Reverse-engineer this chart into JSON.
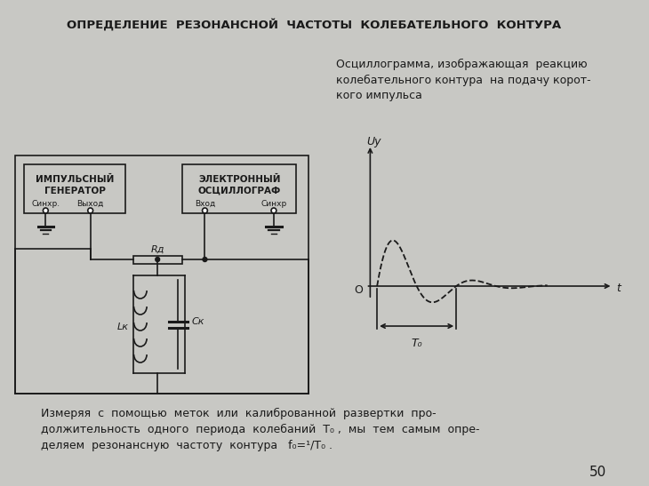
{
  "title": "ОПРЕДЕЛЕНИЕ  РЕЗОНАНСНОЙ  ЧАСТОТЫ  КОЛЕБАТЕЛЬНОГО  КОНТУРА",
  "bg_color": "#c8c8c4",
  "text_color": "#1a1a1a",
  "osc_caption_line1": "Осциллограмма, изображающая  реакцию",
  "osc_caption_line2": "колебательного контура  на подачу корот-",
  "osc_caption_line3": "кого импульса",
  "gen_label_line1": "ИМПУЛЬСНЫЙ",
  "gen_label_line2": "ГЕНЕРАТОР",
  "gen_sync": "Синхр.",
  "gen_out": "Выход",
  "osc_label_line1": "ЭЛЕКТРОННЫЙ",
  "osc_label_line2": "ОСЦИЛЛОГРАФ",
  "osc_in": "Вход",
  "osc_sync": "Синхр",
  "r_label": "Rд",
  "l_label": "Lк",
  "c_label": "Cк",
  "uy_label": "Uу",
  "t_label": "t",
  "o_label": "O",
  "t0_label": "T₀",
  "bottom_text_line1": "Измеряя  с  помощью  меток  или  калиброванной  развертки  про-",
  "bottom_text_line2": "должительность  одного  периода  колебаний  T₀ ,  мы  тем  самым  опре-",
  "bottom_text_line3": "деляем  резонансную  частоту  контура   f₀=¹/T₀ .",
  "page_num": "50"
}
